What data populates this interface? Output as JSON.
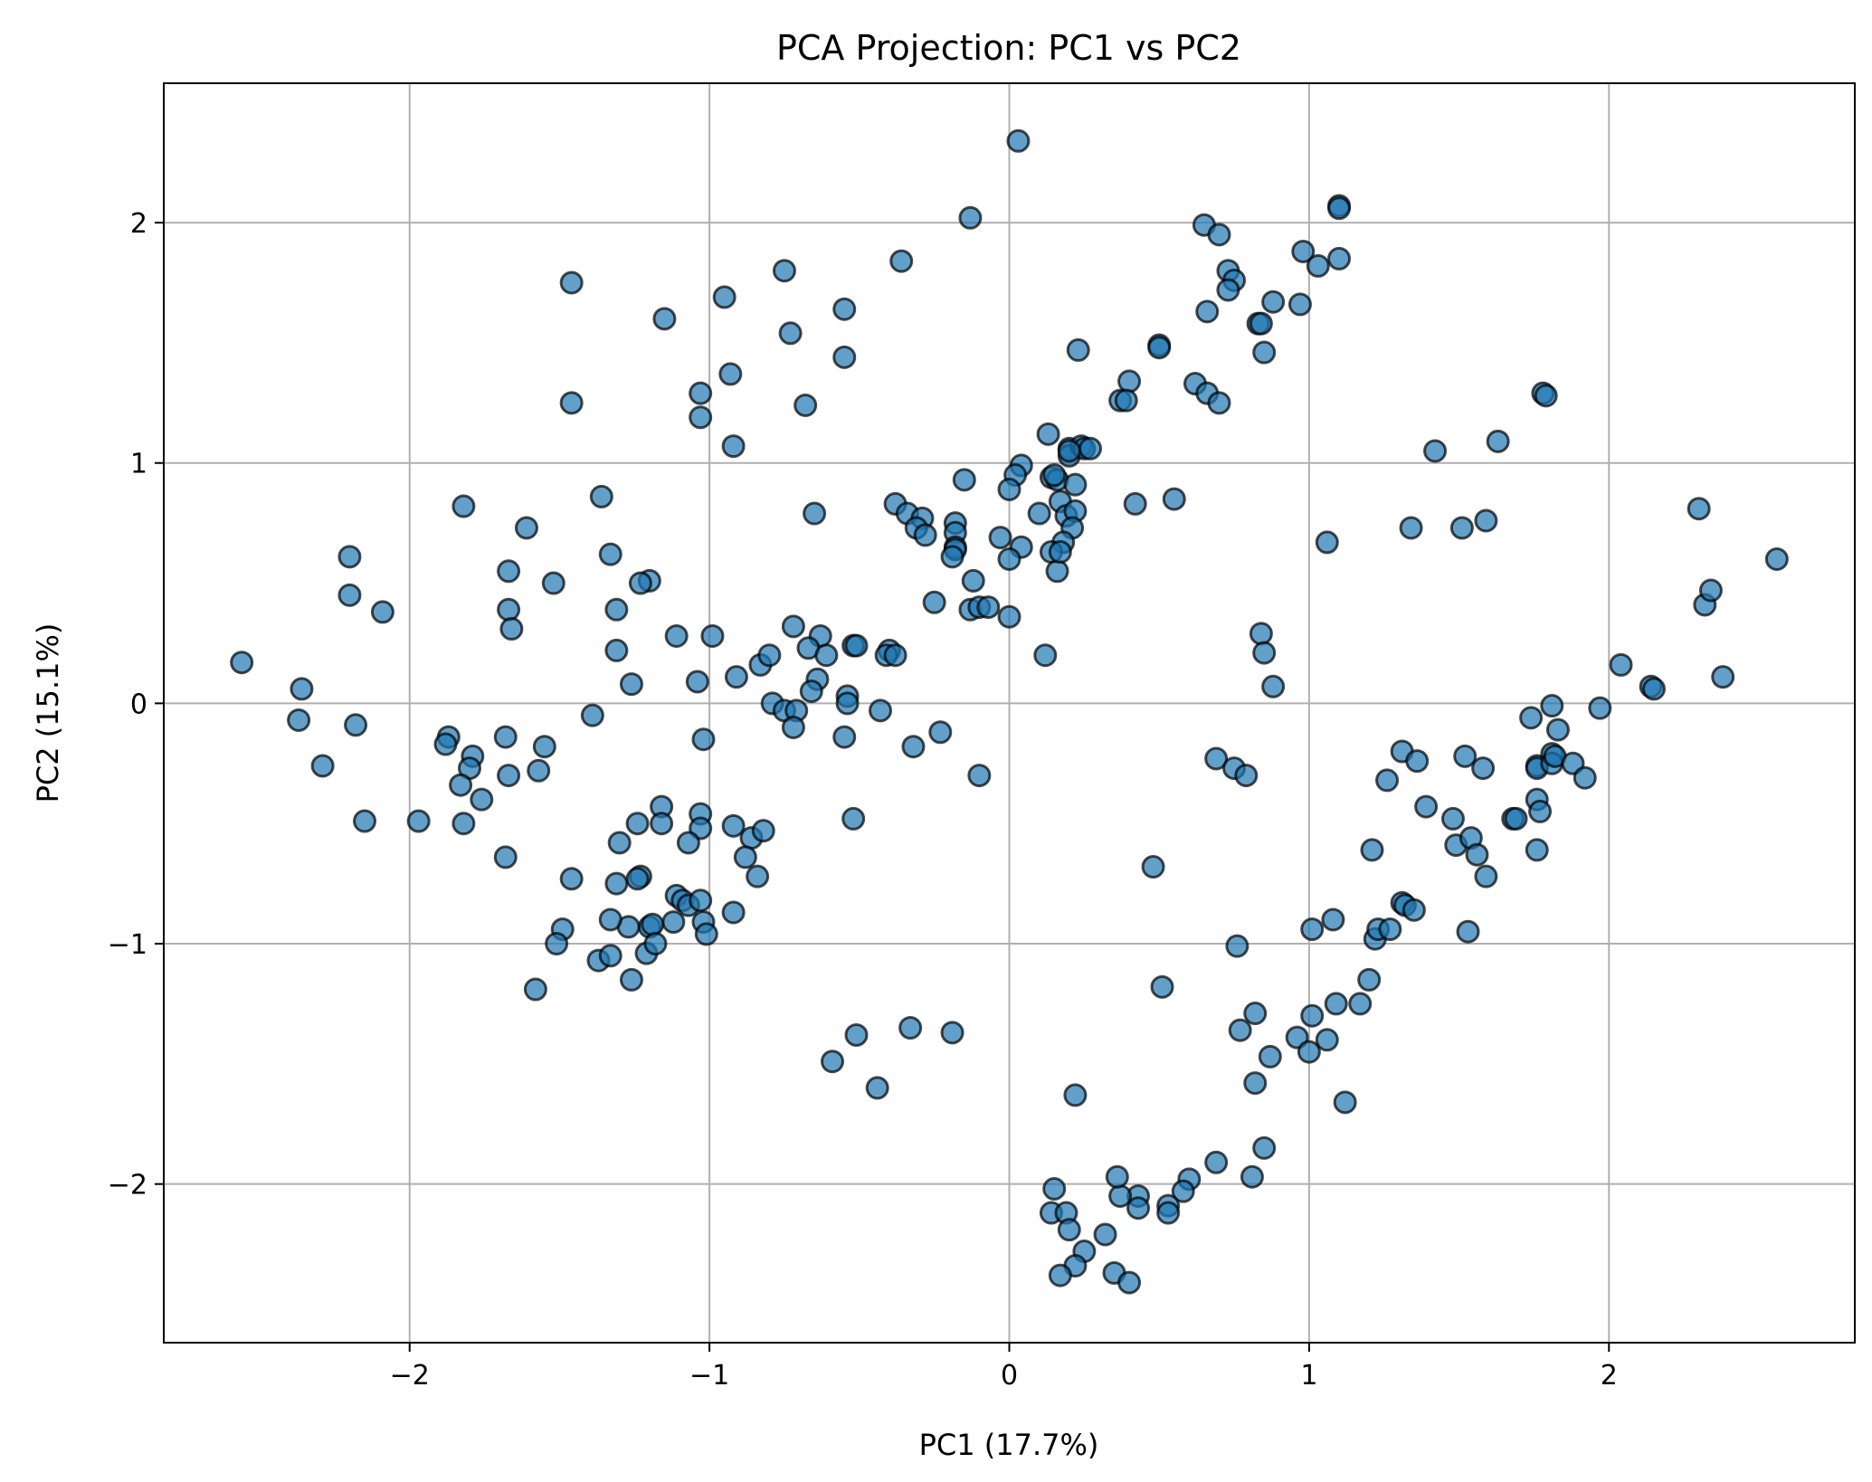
{
  "chart_data": {
    "type": "scatter",
    "title": "PCA Projection: PC1 vs PC2",
    "xlabel": "PC1 (17.7%)",
    "ylabel": "PC2 (15.1%)",
    "xlim": [
      -2.82,
      2.82
    ],
    "ylim": [
      -2.66,
      2.58
    ],
    "xticks": [
      -2,
      -1,
      0,
      1,
      2
    ],
    "yticks": [
      -2,
      -1,
      0,
      1,
      2
    ],
    "xtick_labels": [
      "−2",
      "−1",
      "0",
      "1",
      "2"
    ],
    "ytick_labels": [
      "−2",
      "−1",
      "0",
      "1",
      "2"
    ],
    "grid": true,
    "point_color": "#1f77b4",
    "edge_color": "#000000",
    "points": [
      [
        0.03,
        2.34
      ],
      [
        -0.13,
        2.02
      ],
      [
        1.1,
        2.07
      ],
      [
        1.1,
        2.06
      ],
      [
        0.65,
        1.99
      ],
      [
        0.7,
        1.95
      ],
      [
        0.98,
        1.88
      ],
      [
        1.03,
        1.82
      ],
      [
        1.1,
        1.85
      ],
      [
        0.73,
        1.8
      ],
      [
        0.75,
        1.76
      ],
      [
        0.73,
        1.72
      ],
      [
        0.88,
        1.67
      ],
      [
        0.97,
        1.66
      ],
      [
        0.66,
        1.63
      ],
      [
        0.83,
        1.58
      ],
      [
        0.84,
        1.58
      ],
      [
        0.85,
        1.46
      ],
      [
        0.5,
        1.49
      ],
      [
        0.5,
        1.48
      ],
      [
        0.23,
        1.47
      ],
      [
        0.62,
        1.33
      ],
      [
        0.66,
        1.29
      ],
      [
        0.7,
        1.25
      ],
      [
        0.4,
        1.34
      ],
      [
        0.37,
        1.26
      ],
      [
        0.39,
        1.26
      ],
      [
        1.78,
        1.29
      ],
      [
        1.79,
        1.28
      ],
      [
        1.63,
        1.09
      ],
      [
        1.42,
        1.05
      ],
      [
        0.13,
        1.12
      ],
      [
        0.2,
        1.06
      ],
      [
        0.2,
        1.03
      ],
      [
        0.24,
        1.07
      ],
      [
        0.25,
        1.06
      ],
      [
        0.27,
        1.06
      ],
      [
        0.2,
        1.05
      ],
      [
        0.04,
        0.99
      ],
      [
        0.02,
        0.95
      ],
      [
        0.14,
        0.94
      ],
      [
        0.16,
        0.93
      ],
      [
        0.15,
        0.95
      ],
      [
        0.0,
        0.89
      ],
      [
        0.22,
        0.91
      ],
      [
        0.17,
        0.84
      ],
      [
        0.19,
        0.78
      ],
      [
        0.22,
        0.8
      ],
      [
        0.42,
        0.83
      ],
      [
        0.55,
        0.85
      ],
      [
        0.1,
        0.79
      ],
      [
        0.21,
        0.73
      ],
      [
        0.18,
        0.67
      ],
      [
        0.14,
        0.63
      ],
      [
        0.04,
        0.65
      ],
      [
        0.0,
        0.6
      ],
      [
        0.16,
        0.55
      ],
      [
        0.17,
        0.63
      ],
      [
        -0.03,
        0.69
      ],
      [
        -0.12,
        0.51
      ],
      [
        -0.13,
        0.39
      ],
      [
        -0.1,
        0.4
      ],
      [
        -0.07,
        0.4
      ],
      [
        0.0,
        0.36
      ],
      [
        0.12,
        0.2
      ],
      [
        -0.18,
        0.75
      ],
      [
        -0.18,
        0.71
      ],
      [
        -0.18,
        0.65
      ],
      [
        -0.18,
        0.64
      ],
      [
        -0.19,
        0.61
      ],
      [
        -0.15,
        0.93
      ],
      [
        -0.38,
        0.83
      ],
      [
        -0.34,
        0.79
      ],
      [
        -0.29,
        0.77
      ],
      [
        -0.31,
        0.73
      ],
      [
        -0.28,
        0.7
      ],
      [
        -0.25,
        0.42
      ],
      [
        -0.65,
        0.79
      ],
      [
        -0.68,
        1.24
      ],
      [
        -0.73,
        1.54
      ],
      [
        -0.75,
        1.8
      ],
      [
        -0.55,
        1.64
      ],
      [
        -0.55,
        1.44
      ],
      [
        -0.95,
        1.69
      ],
      [
        -0.93,
        1.37
      ],
      [
        -1.03,
        1.29
      ],
      [
        -1.03,
        1.19
      ],
      [
        -0.92,
        1.07
      ],
      [
        -1.15,
        1.6
      ],
      [
        -1.46,
        1.75
      ],
      [
        -1.46,
        1.25
      ],
      [
        -0.36,
        1.84
      ],
      [
        -1.36,
        0.86
      ],
      [
        -1.33,
        0.62
      ],
      [
        -1.2,
        0.51
      ],
      [
        -1.23,
        0.5
      ],
      [
        -1.31,
        0.39
      ],
      [
        -1.31,
        0.22
      ],
      [
        -1.26,
        0.08
      ],
      [
        -1.11,
        0.28
      ],
      [
        -0.99,
        0.28
      ],
      [
        -1.04,
        0.09
      ],
      [
        -0.91,
        0.11
      ],
      [
        -1.02,
        -0.15
      ],
      [
        -0.72,
        0.32
      ],
      [
        -0.63,
        0.28
      ],
      [
        -0.67,
        0.23
      ],
      [
        -0.61,
        0.2
      ],
      [
        -0.64,
        0.1
      ],
      [
        -0.66,
        0.05
      ],
      [
        -0.52,
        0.24
      ],
      [
        -0.51,
        0.24
      ],
      [
        -0.4,
        0.22
      ],
      [
        -0.41,
        0.2
      ],
      [
        -0.38,
        0.2
      ],
      [
        -0.83,
        0.16
      ],
      [
        -0.8,
        0.2
      ],
      [
        -0.79,
        -0.0
      ],
      [
        -0.75,
        -0.03
      ],
      [
        -0.71,
        -0.03
      ],
      [
        -0.72,
        -0.1
      ],
      [
        -0.54,
        0.03
      ],
      [
        -0.54,
        -0.0
      ],
      [
        -0.43,
        -0.03
      ],
      [
        -0.55,
        -0.14
      ],
      [
        -0.23,
        -0.12
      ],
      [
        -0.32,
        -0.18
      ],
      [
        -0.1,
        -0.3
      ],
      [
        -0.52,
        -0.48
      ],
      [
        -1.61,
        0.73
      ],
      [
        -1.82,
        0.82
      ],
      [
        -1.67,
        0.55
      ],
      [
        -1.52,
        0.5
      ],
      [
        -1.67,
        0.39
      ],
      [
        -1.66,
        0.31
      ],
      [
        -2.2,
        0.61
      ],
      [
        -2.2,
        0.45
      ],
      [
        -2.09,
        0.38
      ],
      [
        -2.56,
        0.17
      ],
      [
        -2.36,
        0.06
      ],
      [
        -2.37,
        -0.07
      ],
      [
        -2.18,
        -0.09
      ],
      [
        -2.29,
        -0.26
      ],
      [
        -1.87,
        -0.14
      ],
      [
        -1.88,
        -0.17
      ],
      [
        -1.79,
        -0.22
      ],
      [
        -1.68,
        -0.14
      ],
      [
        -1.55,
        -0.18
      ],
      [
        -1.39,
        -0.05
      ],
      [
        -1.8,
        -0.27
      ],
      [
        -1.83,
        -0.34
      ],
      [
        -1.67,
        -0.3
      ],
      [
        -1.57,
        -0.28
      ],
      [
        -1.76,
        -0.4
      ],
      [
        -1.97,
        -0.49
      ],
      [
        -1.82,
        -0.5
      ],
      [
        -1.68,
        -0.64
      ],
      [
        -1.16,
        -0.43
      ],
      [
        -1.24,
        -0.5
      ],
      [
        -1.16,
        -0.5
      ],
      [
        -1.03,
        -0.46
      ],
      [
        -1.03,
        -0.52
      ],
      [
        -1.07,
        -0.58
      ],
      [
        -1.3,
        -0.58
      ],
      [
        -0.92,
        -0.51
      ],
      [
        -0.86,
        -0.56
      ],
      [
        -0.82,
        -0.53
      ],
      [
        -0.88,
        -0.64
      ],
      [
        -0.84,
        -0.72
      ],
      [
        -1.46,
        -0.73
      ],
      [
        -1.23,
        -0.72
      ],
      [
        -1.24,
        -0.73
      ],
      [
        -1.31,
        -0.75
      ],
      [
        -1.11,
        -0.8
      ],
      [
        -1.09,
        -0.82
      ],
      [
        -1.07,
        -0.84
      ],
      [
        -1.03,
        -0.82
      ],
      [
        -0.92,
        -0.87
      ],
      [
        -1.02,
        -0.91
      ],
      [
        -1.01,
        -0.96
      ],
      [
        -1.12,
        -0.91
      ],
      [
        -1.2,
        -0.93
      ],
      [
        -1.19,
        -0.92
      ],
      [
        -1.27,
        -0.93
      ],
      [
        -1.33,
        -0.9
      ],
      [
        -1.49,
        -0.94
      ],
      [
        -1.51,
        -1.0
      ],
      [
        -1.37,
        -1.07
      ],
      [
        -1.33,
        -1.05
      ],
      [
        -1.21,
        -1.04
      ],
      [
        -1.18,
        -1.0
      ],
      [
        -1.26,
        -1.15
      ],
      [
        -1.58,
        -1.19
      ],
      [
        -0.59,
        -1.49
      ],
      [
        -0.51,
        -1.38
      ],
      [
        -0.33,
        -1.35
      ],
      [
        -0.19,
        -1.37
      ],
      [
        -0.44,
        -1.6
      ],
      [
        0.69,
        -0.23
      ],
      [
        0.75,
        -0.27
      ],
      [
        0.79,
        -0.3
      ],
      [
        0.84,
        0.29
      ],
      [
        0.85,
        0.21
      ],
      [
        0.88,
        0.07
      ],
      [
        0.76,
        -1.01
      ],
      [
        0.48,
        -0.68
      ],
      [
        0.51,
        -1.18
      ],
      [
        0.77,
        -1.36
      ],
      [
        0.82,
        -1.29
      ],
      [
        0.87,
        -1.47
      ],
      [
        0.82,
        -1.58
      ],
      [
        0.85,
        -1.85
      ],
      [
        0.81,
        -1.97
      ],
      [
        0.69,
        -1.91
      ],
      [
        0.6,
        -1.98
      ],
      [
        0.58,
        -2.03
      ],
      [
        0.53,
        -2.09
      ],
      [
        0.53,
        -2.12
      ],
      [
        0.43,
        -2.05
      ],
      [
        0.43,
        -2.1
      ],
      [
        0.37,
        -2.05
      ],
      [
        0.36,
        -1.97
      ],
      [
        0.15,
        -2.02
      ],
      [
        0.14,
        -2.12
      ],
      [
        0.19,
        -2.12
      ],
      [
        0.2,
        -2.19
      ],
      [
        0.25,
        -2.28
      ],
      [
        0.22,
        -2.34
      ],
      [
        0.17,
        -2.38
      ],
      [
        0.32,
        -2.21
      ],
      [
        0.35,
        -2.37
      ],
      [
        0.4,
        -2.41
      ],
      [
        0.22,
        -1.63
      ],
      [
        0.96,
        -1.39
      ],
      [
        1.0,
        -1.45
      ],
      [
        1.01,
        -1.3
      ],
      [
        1.06,
        -1.4
      ],
      [
        1.09,
        -1.25
      ],
      [
        1.12,
        -1.66
      ],
      [
        1.17,
        -1.25
      ],
      [
        1.2,
        -1.15
      ],
      [
        1.01,
        -0.94
      ],
      [
        1.08,
        -0.9
      ],
      [
        1.22,
        -0.98
      ],
      [
        1.23,
        -0.94
      ],
      [
        1.27,
        -0.94
      ],
      [
        1.31,
        -0.83
      ],
      [
        1.32,
        -0.84
      ],
      [
        1.35,
        -0.86
      ],
      [
        1.21,
        -0.61
      ],
      [
        1.26,
        -0.32
      ],
      [
        1.31,
        -0.2
      ],
      [
        1.36,
        -0.24
      ],
      [
        1.39,
        -0.43
      ],
      [
        1.48,
        -0.48
      ],
      [
        1.49,
        -0.59
      ],
      [
        1.54,
        -0.56
      ],
      [
        1.56,
        -0.63
      ],
      [
        1.59,
        -0.72
      ],
      [
        1.53,
        -0.95
      ],
      [
        1.52,
        -0.22
      ],
      [
        1.58,
        -0.27
      ],
      [
        1.68,
        -0.48
      ],
      [
        1.69,
        -0.48
      ],
      [
        1.76,
        -0.61
      ],
      [
        1.76,
        -0.4
      ],
      [
        1.77,
        -0.45
      ],
      [
        1.76,
        -0.26
      ],
      [
        1.76,
        -0.27
      ],
      [
        1.81,
        -0.21
      ],
      [
        1.81,
        -0.25
      ],
      [
        1.82,
        -0.22
      ],
      [
        1.88,
        -0.25
      ],
      [
        1.92,
        -0.31
      ],
      [
        1.74,
        -0.06
      ],
      [
        1.81,
        -0.01
      ],
      [
        1.83,
        -0.11
      ],
      [
        1.97,
        -0.02
      ],
      [
        2.04,
        0.16
      ],
      [
        2.14,
        0.07
      ],
      [
        2.15,
        0.06
      ],
      [
        2.3,
        0.81
      ],
      [
        2.32,
        0.41
      ],
      [
        2.34,
        0.47
      ],
      [
        2.38,
        0.11
      ],
      [
        2.56,
        0.6
      ],
      [
        1.34,
        0.73
      ],
      [
        1.51,
        0.73
      ],
      [
        1.59,
        0.76
      ],
      [
        1.06,
        0.67
      ],
      [
        -2.15,
        -0.49
      ]
    ]
  }
}
